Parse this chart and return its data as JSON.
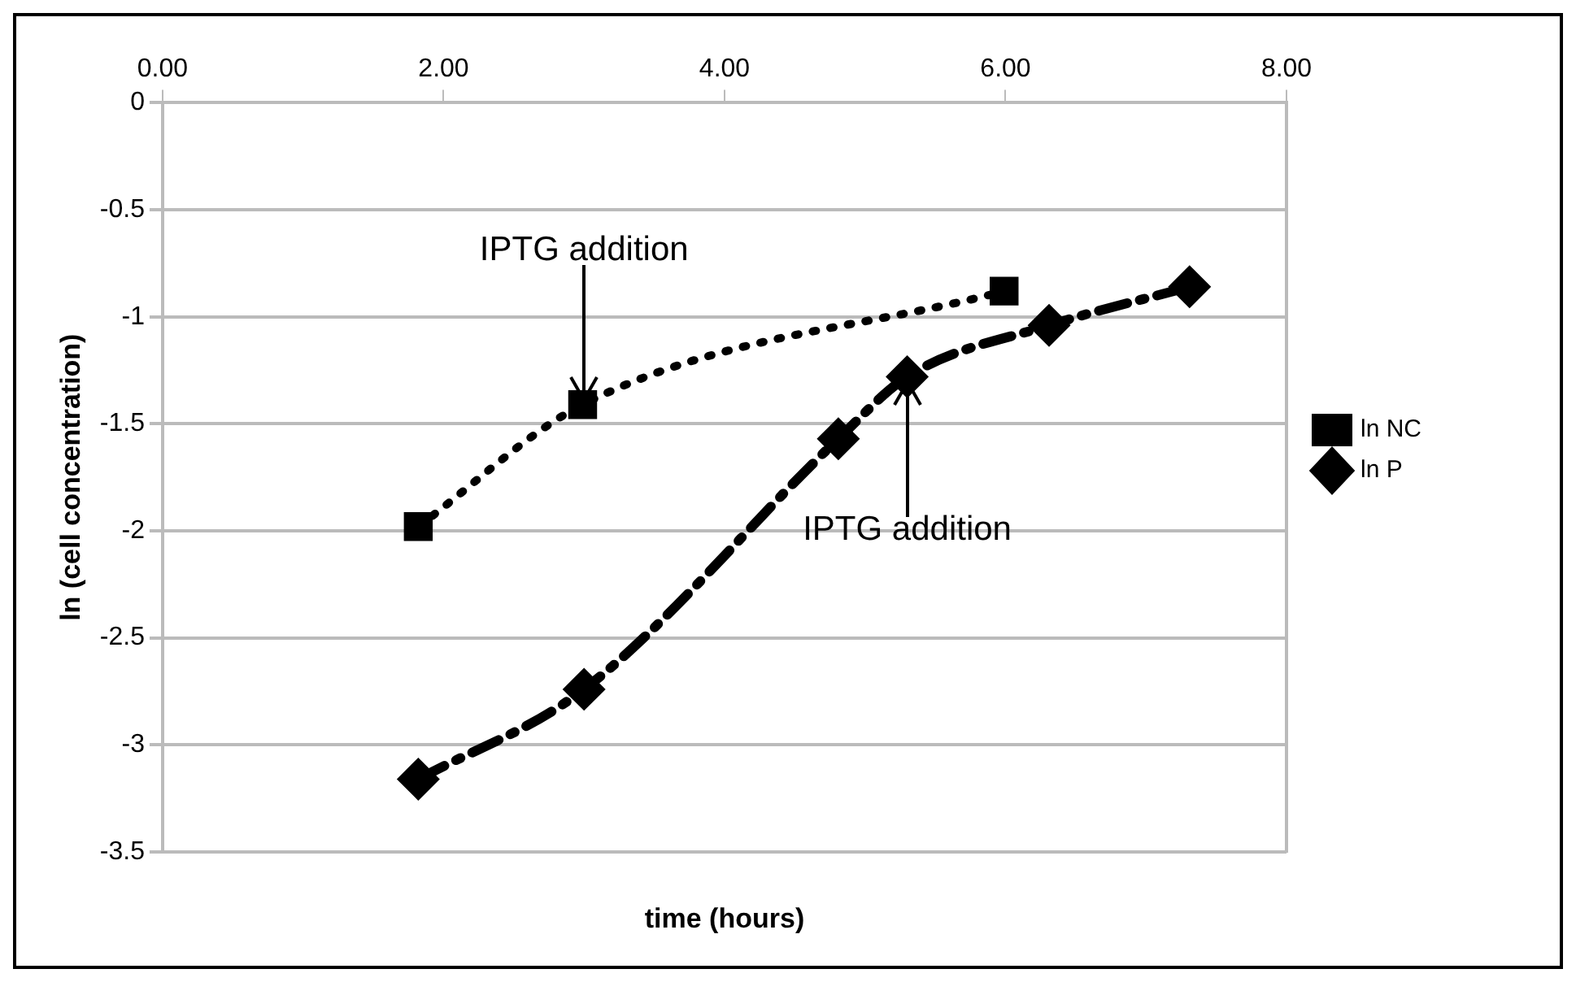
{
  "chart_data": {
    "type": "line",
    "xlabel": "time (hours)",
    "ylabel": "ln (cell concentration)",
    "xlim": [
      0,
      8
    ],
    "xticks": [
      {
        "value": 0,
        "label": "0.00"
      },
      {
        "value": 2,
        "label": "2.00"
      },
      {
        "value": 4,
        "label": "4.00"
      },
      {
        "value": 6,
        "label": "6.00"
      },
      {
        "value": 8,
        "label": "8.00"
      }
    ],
    "ylim": [
      -3.5,
      0
    ],
    "yticks": [
      -3.5,
      -3,
      -2.5,
      -2,
      -1.5,
      -1,
      -0.5,
      0
    ],
    "grid": "y",
    "legend": "right",
    "series": [
      {
        "name": "ln NC",
        "color": "#000000",
        "marker": "square",
        "line_style": "dotted",
        "x": [
          1.82,
          2.99,
          5.99
        ],
        "values": [
          -1.98,
          -1.41,
          -0.88
        ]
      },
      {
        "name": "ln P",
        "color": "#000000",
        "marker": "diamond",
        "line_style": "dashed",
        "x": [
          1.82,
          3.0,
          4.81,
          5.3,
          6.31,
          7.31
        ],
        "values": [
          -3.16,
          -2.74,
          -1.57,
          -1.28,
          -1.04,
          -0.86
        ]
      }
    ],
    "annotations": [
      {
        "text": "IPTG addition",
        "x": 3.0,
        "y": -1.41
      },
      {
        "text": "IPTG addition",
        "x": 5.3,
        "y": -1.28
      }
    ]
  }
}
